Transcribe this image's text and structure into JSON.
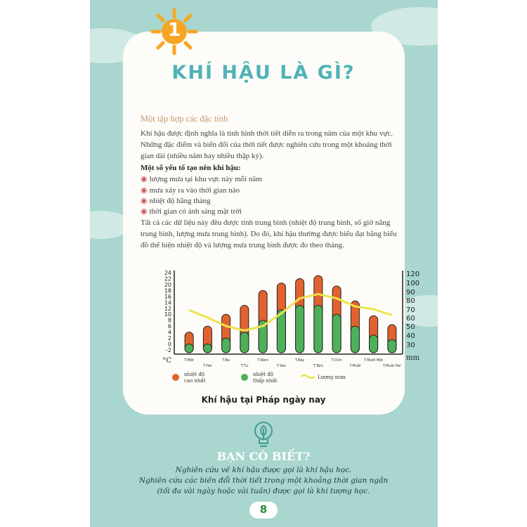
{
  "chapter_number": "1",
  "title": "KHÍ HẬU LÀ GÌ?",
  "section_heading": "Một tập hợp các đặc tính",
  "intro": "Khí hậu được định nghĩa là tình hình thời tiết diễn ra trong năm của một khu vực. Những đặc điểm và biến đổi của thời tiết được nghiên cứu trong một khoảng thời gian dài (nhiều năm hay nhiều thập kỷ).",
  "factors_heading": "Một số yếu tố tạo nên khí hậu:",
  "factors": [
    "lượng mưa tại khu vực này mỗi năm",
    "mưa xảy ra vào thời gian nào",
    "nhiệt độ hằng tháng",
    "thời gian có ánh sáng mặt trời"
  ],
  "conclusion": "Tất cả các dữ liệu này đều được tính trung bình (nhiệt độ trung bình, số giờ nắng trung bình, lượng mưa trung bình). Do đó, khí hậu thường được biểu đạt bằng biểu đồ thể hiện nhiệt độ và lượng mưa trung bình được đo theo tháng.",
  "chart_caption": "Khí hậu tại Pháp ngày nay",
  "chart_data": {
    "type": "bar",
    "title": "Khí hậu tại Pháp ngày nay",
    "categories": [
      "T.Một",
      "T.Hai",
      "T.Ba",
      "T.Tư",
      "T.Năm",
      "T.Sáu",
      "T.Bảy",
      "T.Tám",
      "T.Chín",
      "T.Mười",
      "T.Mười Một",
      "T.Mười Hai"
    ],
    "series": [
      {
        "name": "nhiệt độ cao nhất",
        "color": "#e2622f",
        "values": [
          4,
          6,
          10,
          13,
          18,
          20.5,
          22,
          23,
          19.5,
          14.5,
          9.5,
          6.5
        ]
      },
      {
        "name": "nhiệt độ thấp nhất",
        "color": "#4fb05a",
        "values": [
          0,
          0,
          2,
          4,
          8,
          11.5,
          13,
          13,
          10,
          6,
          3,
          1.5
        ]
      },
      {
        "name": "Lượng mưa",
        "type": "line",
        "axis": "right",
        "color": "#efe24a",
        "values": [
          69,
          60,
          50,
          45,
          50,
          65,
          82,
          87,
          82,
          73,
          70,
          63
        ]
      }
    ],
    "left_axis": {
      "unit": "°C",
      "ticks": [
        24,
        22,
        20,
        18,
        16,
        14,
        12,
        10,
        8,
        6,
        4,
        2,
        0,
        -2
      ]
    },
    "right_axis": {
      "unit": "mm",
      "ticks": [
        120,
        100,
        90,
        80,
        70,
        60,
        50,
        40,
        30
      ]
    },
    "legend_placement": "bottom"
  },
  "did_you_know": {
    "heading": "BẠN CÓ BIẾT?",
    "lines": [
      "Nghiên cứu về khí hậu được gọi là khí hậu học.",
      "Nghiên cứu các biến đổi thời tiết trong một khoảng thời gian ngắn",
      "(tối đa vài ngày hoặc vài tuần) được gọi là khí tượng học."
    ]
  },
  "page_number": "8"
}
